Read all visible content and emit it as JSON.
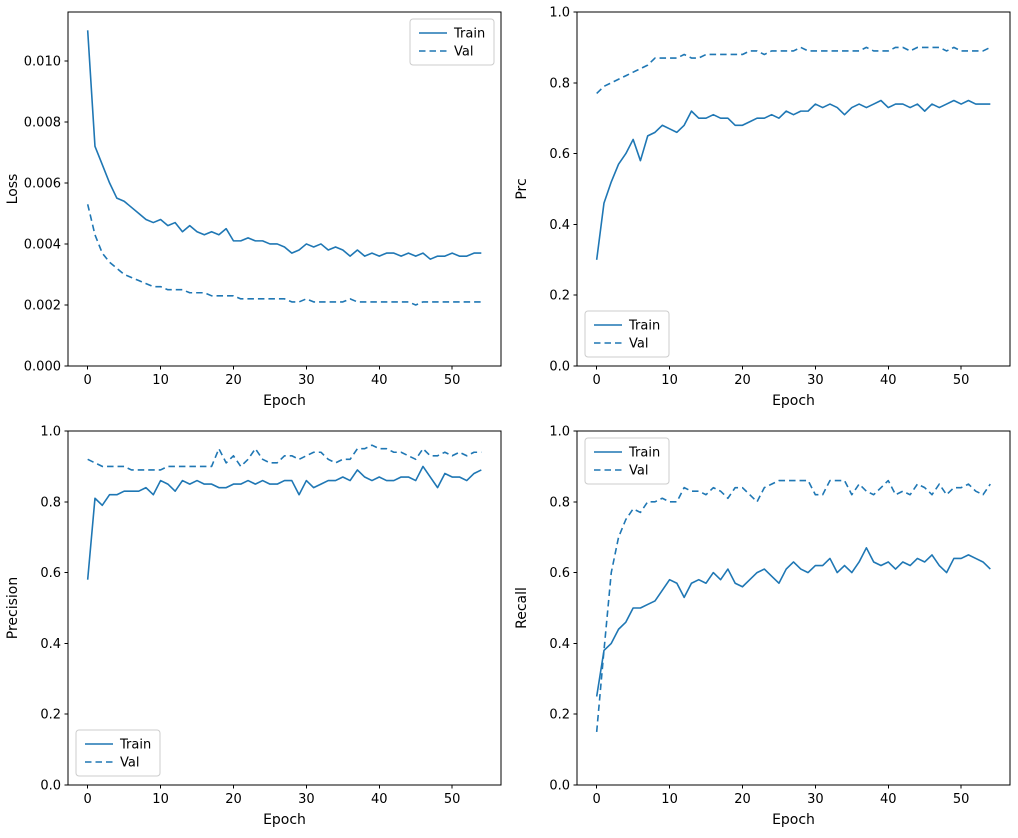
{
  "figure": {
    "background": "#ffffff",
    "line_color": "#1f77b4",
    "legend_border_color": "#cccccc"
  },
  "chart_data": [
    {
      "type": "line",
      "title": "",
      "xlabel": "Epoch",
      "ylabel": "Loss",
      "xlim": [
        -2.7,
        56.7
      ],
      "ylim": [
        0,
        0.0116
      ],
      "grid": false,
      "legend": {
        "position": "upper-right",
        "entries": [
          "Train",
          "Val"
        ]
      },
      "xticks": [
        0,
        10,
        20,
        30,
        40,
        50
      ],
      "xtick_labels": [
        "0",
        "10",
        "20",
        "30",
        "40",
        "50"
      ],
      "yticks": [
        0,
        0.002,
        0.004,
        0.006,
        0.008,
        0.01
      ],
      "ytick_labels": [
        "0.000",
        "0.002",
        "0.004",
        "0.006",
        "0.008",
        "0.010"
      ],
      "x": [
        0,
        1,
        2,
        3,
        4,
        5,
        6,
        7,
        8,
        9,
        10,
        11,
        12,
        13,
        14,
        15,
        16,
        17,
        18,
        19,
        20,
        21,
        22,
        23,
        24,
        25,
        26,
        27,
        28,
        29,
        30,
        31,
        32,
        33,
        34,
        35,
        36,
        37,
        38,
        39,
        40,
        41,
        42,
        43,
        44,
        45,
        46,
        47,
        48,
        49,
        50,
        51,
        52,
        53,
        54
      ],
      "series": [
        {
          "name": "Train",
          "style": "solid",
          "values": [
            0.011,
            0.0072,
            0.0066,
            0.006,
            0.0055,
            0.0054,
            0.0052,
            0.005,
            0.0048,
            0.0047,
            0.0048,
            0.0046,
            0.0047,
            0.0044,
            0.0046,
            0.0044,
            0.0043,
            0.0044,
            0.0043,
            0.0045,
            0.0041,
            0.0041,
            0.0042,
            0.0041,
            0.0041,
            0.004,
            0.004,
            0.0039,
            0.0037,
            0.0038,
            0.004,
            0.0039,
            0.004,
            0.0038,
            0.0039,
            0.0038,
            0.0036,
            0.0038,
            0.0036,
            0.0037,
            0.0036,
            0.0037,
            0.0037,
            0.0036,
            0.0037,
            0.0036,
            0.0037,
            0.0035,
            0.0036,
            0.0036,
            0.0037,
            0.0036,
            0.0036,
            0.0037,
            0.0037
          ]
        },
        {
          "name": "Val",
          "style": "dashed",
          "values": [
            0.0053,
            0.0043,
            0.0037,
            0.0034,
            0.0032,
            0.003,
            0.0029,
            0.0028,
            0.0027,
            0.0026,
            0.0026,
            0.0025,
            0.0025,
            0.0025,
            0.0024,
            0.0024,
            0.0024,
            0.0023,
            0.0023,
            0.0023,
            0.0023,
            0.0022,
            0.0022,
            0.0022,
            0.0022,
            0.0022,
            0.0022,
            0.0022,
            0.0021,
            0.0021,
            0.0022,
            0.0021,
            0.0021,
            0.0021,
            0.0021,
            0.0021,
            0.0022,
            0.0021,
            0.0021,
            0.0021,
            0.0021,
            0.0021,
            0.0021,
            0.0021,
            0.0021,
            0.002,
            0.0021,
            0.0021,
            0.0021,
            0.0021,
            0.0021,
            0.0021,
            0.0021,
            0.0021,
            0.0021
          ]
        }
      ]
    },
    {
      "type": "line",
      "title": "",
      "xlabel": "Epoch",
      "ylabel": "Prc",
      "xlim": [
        -2.7,
        56.7
      ],
      "ylim": [
        0,
        1.0
      ],
      "grid": false,
      "legend": {
        "position": "lower-left",
        "entries": [
          "Train",
          "Val"
        ]
      },
      "xticks": [
        0,
        10,
        20,
        30,
        40,
        50
      ],
      "xtick_labels": [
        "0",
        "10",
        "20",
        "30",
        "40",
        "50"
      ],
      "yticks": [
        0,
        0.2,
        0.4,
        0.6,
        0.8,
        1.0
      ],
      "ytick_labels": [
        "0.0",
        "0.2",
        "0.4",
        "0.6",
        "0.8",
        "1.0"
      ],
      "x": [
        0,
        1,
        2,
        3,
        4,
        5,
        6,
        7,
        8,
        9,
        10,
        11,
        12,
        13,
        14,
        15,
        16,
        17,
        18,
        19,
        20,
        21,
        22,
        23,
        24,
        25,
        26,
        27,
        28,
        29,
        30,
        31,
        32,
        33,
        34,
        35,
        36,
        37,
        38,
        39,
        40,
        41,
        42,
        43,
        44,
        45,
        46,
        47,
        48,
        49,
        50,
        51,
        52,
        53,
        54
      ],
      "series": [
        {
          "name": "Train",
          "style": "solid",
          "values": [
            0.3,
            0.46,
            0.52,
            0.57,
            0.6,
            0.64,
            0.58,
            0.65,
            0.66,
            0.68,
            0.67,
            0.66,
            0.68,
            0.72,
            0.7,
            0.7,
            0.71,
            0.7,
            0.7,
            0.68,
            0.68,
            0.69,
            0.7,
            0.7,
            0.71,
            0.7,
            0.72,
            0.71,
            0.72,
            0.72,
            0.74,
            0.73,
            0.74,
            0.73,
            0.71,
            0.73,
            0.74,
            0.73,
            0.74,
            0.75,
            0.73,
            0.74,
            0.74,
            0.73,
            0.74,
            0.72,
            0.74,
            0.73,
            0.74,
            0.75,
            0.74,
            0.75,
            0.74,
            0.74,
            0.74
          ]
        },
        {
          "name": "Val",
          "style": "dashed",
          "values": [
            0.77,
            0.79,
            0.8,
            0.81,
            0.82,
            0.83,
            0.84,
            0.85,
            0.87,
            0.87,
            0.87,
            0.87,
            0.88,
            0.87,
            0.87,
            0.88,
            0.88,
            0.88,
            0.88,
            0.88,
            0.88,
            0.89,
            0.89,
            0.88,
            0.89,
            0.89,
            0.89,
            0.89,
            0.9,
            0.89,
            0.89,
            0.89,
            0.89,
            0.89,
            0.89,
            0.89,
            0.89,
            0.9,
            0.89,
            0.89,
            0.89,
            0.9,
            0.9,
            0.89,
            0.9,
            0.9,
            0.9,
            0.9,
            0.89,
            0.9,
            0.89,
            0.89,
            0.89,
            0.89,
            0.9
          ]
        }
      ]
    },
    {
      "type": "line",
      "title": "",
      "xlabel": "Epoch",
      "ylabel": "Precision",
      "xlim": [
        -2.7,
        56.7
      ],
      "ylim": [
        0,
        1.0
      ],
      "grid": false,
      "legend": {
        "position": "lower-left",
        "entries": [
          "Train",
          "Val"
        ]
      },
      "xticks": [
        0,
        10,
        20,
        30,
        40,
        50
      ],
      "xtick_labels": [
        "0",
        "10",
        "20",
        "30",
        "40",
        "50"
      ],
      "yticks": [
        0,
        0.2,
        0.4,
        0.6,
        0.8,
        1.0
      ],
      "ytick_labels": [
        "0.0",
        "0.2",
        "0.4",
        "0.6",
        "0.8",
        "1.0"
      ],
      "x": [
        0,
        1,
        2,
        3,
        4,
        5,
        6,
        7,
        8,
        9,
        10,
        11,
        12,
        13,
        14,
        15,
        16,
        17,
        18,
        19,
        20,
        21,
        22,
        23,
        24,
        25,
        26,
        27,
        28,
        29,
        30,
        31,
        32,
        33,
        34,
        35,
        36,
        37,
        38,
        39,
        40,
        41,
        42,
        43,
        44,
        45,
        46,
        47,
        48,
        49,
        50,
        51,
        52,
        53,
        54
      ],
      "series": [
        {
          "name": "Train",
          "style": "solid",
          "values": [
            0.58,
            0.81,
            0.79,
            0.82,
            0.82,
            0.83,
            0.83,
            0.83,
            0.84,
            0.82,
            0.86,
            0.85,
            0.83,
            0.86,
            0.85,
            0.86,
            0.85,
            0.85,
            0.84,
            0.84,
            0.85,
            0.85,
            0.86,
            0.85,
            0.86,
            0.85,
            0.85,
            0.86,
            0.86,
            0.82,
            0.86,
            0.84,
            0.85,
            0.86,
            0.86,
            0.87,
            0.86,
            0.89,
            0.87,
            0.86,
            0.87,
            0.86,
            0.86,
            0.87,
            0.87,
            0.86,
            0.9,
            0.87,
            0.84,
            0.88,
            0.87,
            0.87,
            0.86,
            0.88,
            0.89
          ]
        },
        {
          "name": "Val",
          "style": "dashed",
          "values": [
            0.92,
            0.91,
            0.9,
            0.9,
            0.9,
            0.9,
            0.89,
            0.89,
            0.89,
            0.89,
            0.89,
            0.9,
            0.9,
            0.9,
            0.9,
            0.9,
            0.9,
            0.9,
            0.95,
            0.91,
            0.93,
            0.9,
            0.92,
            0.95,
            0.92,
            0.91,
            0.91,
            0.93,
            0.93,
            0.92,
            0.93,
            0.94,
            0.94,
            0.92,
            0.91,
            0.92,
            0.92,
            0.95,
            0.95,
            0.96,
            0.95,
            0.95,
            0.94,
            0.94,
            0.93,
            0.92,
            0.95,
            0.93,
            0.93,
            0.94,
            0.93,
            0.94,
            0.93,
            0.94,
            0.94
          ]
        }
      ]
    },
    {
      "type": "line",
      "title": "",
      "xlabel": "Epoch",
      "ylabel": "Recall",
      "xlim": [
        -2.7,
        56.7
      ],
      "ylim": [
        0,
        1.0
      ],
      "grid": false,
      "legend": {
        "position": "upper-left",
        "entries": [
          "Train",
          "Val"
        ]
      },
      "xticks": [
        0,
        10,
        20,
        30,
        40,
        50
      ],
      "xtick_labels": [
        "0",
        "10",
        "20",
        "30",
        "40",
        "50"
      ],
      "yticks": [
        0,
        0.2,
        0.4,
        0.6,
        0.8,
        1.0
      ],
      "ytick_labels": [
        "0.0",
        "0.2",
        "0.4",
        "0.6",
        "0.8",
        "1.0"
      ],
      "x": [
        0,
        1,
        2,
        3,
        4,
        5,
        6,
        7,
        8,
        9,
        10,
        11,
        12,
        13,
        14,
        15,
        16,
        17,
        18,
        19,
        20,
        21,
        22,
        23,
        24,
        25,
        26,
        27,
        28,
        29,
        30,
        31,
        32,
        33,
        34,
        35,
        36,
        37,
        38,
        39,
        40,
        41,
        42,
        43,
        44,
        45,
        46,
        47,
        48,
        49,
        50,
        51,
        52,
        53,
        54
      ],
      "series": [
        {
          "name": "Train",
          "style": "solid",
          "values": [
            0.25,
            0.38,
            0.4,
            0.44,
            0.46,
            0.5,
            0.5,
            0.51,
            0.52,
            0.55,
            0.58,
            0.57,
            0.53,
            0.57,
            0.58,
            0.57,
            0.6,
            0.58,
            0.61,
            0.57,
            0.56,
            0.58,
            0.6,
            0.61,
            0.59,
            0.57,
            0.61,
            0.63,
            0.61,
            0.6,
            0.62,
            0.62,
            0.64,
            0.6,
            0.62,
            0.6,
            0.63,
            0.67,
            0.63,
            0.62,
            0.63,
            0.61,
            0.63,
            0.62,
            0.64,
            0.63,
            0.65,
            0.62,
            0.6,
            0.64,
            0.64,
            0.65,
            0.64,
            0.63,
            0.61
          ]
        },
        {
          "name": "Val",
          "style": "dashed",
          "values": [
            0.15,
            0.38,
            0.6,
            0.7,
            0.75,
            0.78,
            0.77,
            0.8,
            0.8,
            0.81,
            0.8,
            0.8,
            0.84,
            0.83,
            0.83,
            0.82,
            0.84,
            0.83,
            0.81,
            0.84,
            0.84,
            0.82,
            0.8,
            0.84,
            0.85,
            0.86,
            0.86,
            0.86,
            0.86,
            0.86,
            0.82,
            0.82,
            0.86,
            0.86,
            0.86,
            0.82,
            0.85,
            0.83,
            0.82,
            0.84,
            0.86,
            0.82,
            0.83,
            0.82,
            0.85,
            0.84,
            0.82,
            0.85,
            0.82,
            0.84,
            0.84,
            0.85,
            0.83,
            0.82,
            0.85
          ]
        }
      ]
    }
  ]
}
